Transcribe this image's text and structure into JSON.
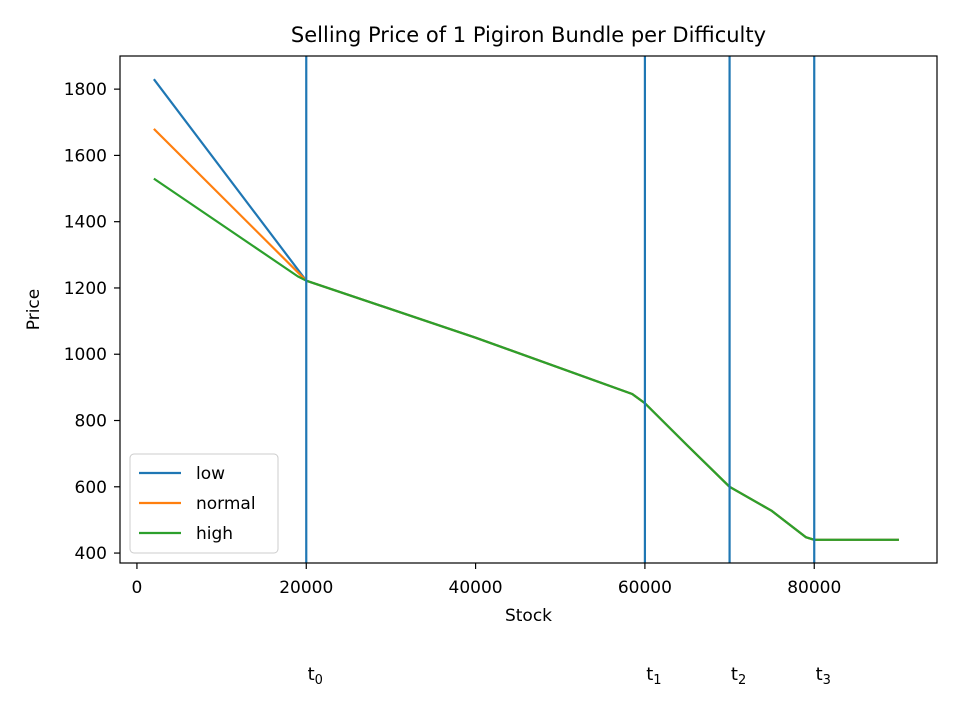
{
  "chart_data": {
    "type": "line",
    "title": "Selling Price of 1 Pigiron Bundle per Difficulty",
    "xlabel": "Stock",
    "ylabel": "Price",
    "xlim": [
      -2000,
      94500
    ],
    "ylim": [
      370,
      1900
    ],
    "xticks": [
      0,
      20000,
      40000,
      60000,
      80000
    ],
    "yticks": [
      400,
      600,
      800,
      1000,
      1200,
      1400,
      1600,
      1800
    ],
    "grid": false,
    "legend_position": "lower-left",
    "series": [
      {
        "name": "low",
        "color": "#1f77b4",
        "points": [
          [
            2000,
            1830
          ],
          [
            20000,
            1222
          ],
          [
            40000,
            1050
          ],
          [
            58500,
            880
          ],
          [
            60000,
            852
          ],
          [
            65000,
            725
          ],
          [
            70000,
            600
          ],
          [
            75000,
            527
          ],
          [
            79000,
            448
          ],
          [
            80000,
            440
          ],
          [
            90000,
            440
          ]
        ]
      },
      {
        "name": "normal",
        "color": "#ff7f0e",
        "points": [
          [
            2000,
            1680
          ],
          [
            20000,
            1222
          ],
          [
            40000,
            1050
          ],
          [
            58500,
            880
          ],
          [
            60000,
            852
          ],
          [
            65000,
            725
          ],
          [
            70000,
            600
          ],
          [
            75000,
            527
          ],
          [
            79000,
            448
          ],
          [
            80000,
            440
          ],
          [
            90000,
            440
          ]
        ]
      },
      {
        "name": "high",
        "color": "#2ca02c",
        "points": [
          [
            2000,
            1530
          ],
          [
            19000,
            1235
          ],
          [
            20000,
            1222
          ],
          [
            40000,
            1050
          ],
          [
            58500,
            880
          ],
          [
            60000,
            852
          ],
          [
            65000,
            725
          ],
          [
            70000,
            600
          ],
          [
            75000,
            527
          ],
          [
            79000,
            448
          ],
          [
            80000,
            440
          ],
          [
            90000,
            440
          ]
        ]
      }
    ],
    "threshold_color": "#1f77b4",
    "thresholds": [
      {
        "x": 20000,
        "label": "t",
        "sub": "0"
      },
      {
        "x": 60000,
        "label": "t",
        "sub": "1"
      },
      {
        "x": 70000,
        "label": "t",
        "sub": "2"
      },
      {
        "x": 80000,
        "label": "t",
        "sub": "3"
      }
    ]
  }
}
